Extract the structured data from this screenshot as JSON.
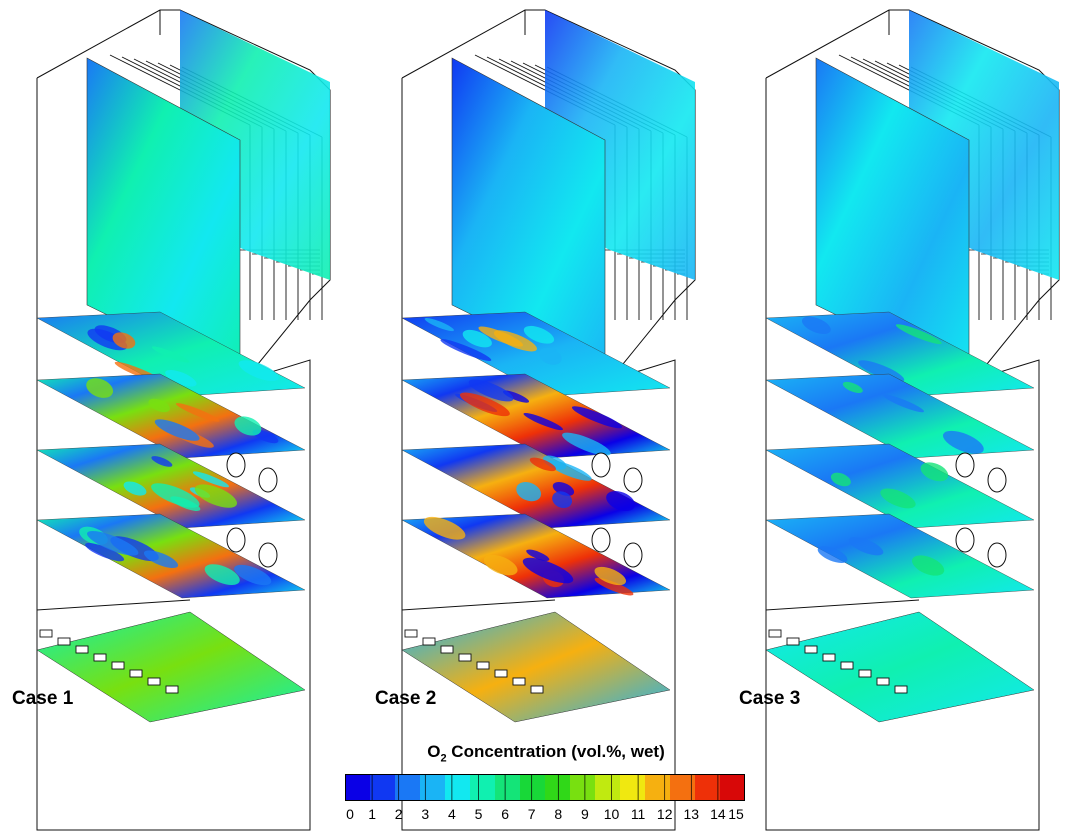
{
  "cases": [
    {
      "label": "Case 1",
      "profile": "high"
    },
    {
      "label": "Case 2",
      "profile": "mixed"
    },
    {
      "label": "Case 3",
      "profile": "low"
    }
  ],
  "colorbar": {
    "title_main": "O",
    "title_sub": "2",
    "title_rest": " Concentration (vol.%, wet)",
    "min": 0,
    "max": 15,
    "ticks": [
      "0",
      "1",
      "2",
      "3",
      "4",
      "5",
      "6",
      "7",
      "8",
      "9",
      "10",
      "11",
      "12",
      "13",
      "14",
      "15"
    ],
    "colors": [
      "#0a00e6",
      "#1038f2",
      "#1a78f5",
      "#1ab4f5",
      "#12e8f0",
      "#10f0b0",
      "#14e478",
      "#18d838",
      "#30d818",
      "#78e010",
      "#c0ea10",
      "#f0e810",
      "#f6b010",
      "#f47010",
      "#ee3008",
      "#d80808"
    ]
  }
}
